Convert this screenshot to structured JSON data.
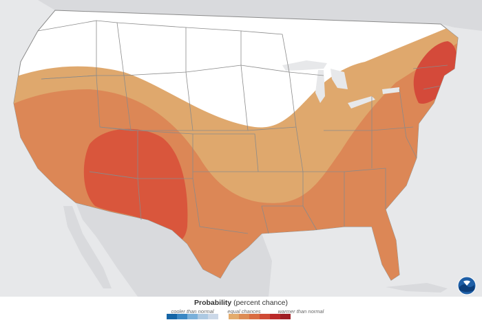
{
  "legend": {
    "title_bold": "Probability",
    "title_rest": " (percent chance)",
    "categories": [
      "cooler than normal",
      "equal chances",
      "warmer than normal"
    ],
    "swatches": [
      "#1565a6",
      "#3b88c4",
      "#7ab0da",
      "#adc9e2",
      "#cbd8e8",
      "#ffffff",
      "#e3ab6c",
      "#dd8c55",
      "#d96c42",
      "#cf4a35",
      "#bb2a2a",
      "#9e1d24"
    ]
  },
  "map": {
    "ocean_color": "#e7e8ea",
    "land_color": "#ffffff",
    "outside_us_color": "#d9dadd",
    "boundary_color": "#8a8a8a",
    "categories_shown": [
      {
        "category": "equal chances",
        "color": "#ffffff"
      },
      {
        "category": "warmer than normal",
        "color": "#dfa86d"
      },
      {
        "category": "warmer than normal",
        "color": "#dc8756"
      },
      {
        "category": "warmer than normal",
        "color": "#d9563c"
      },
      {
        "category": "warmer than normal",
        "color": "#d44a3a"
      }
    ]
  },
  "logo": {
    "icon": "noaa-logo-icon"
  }
}
